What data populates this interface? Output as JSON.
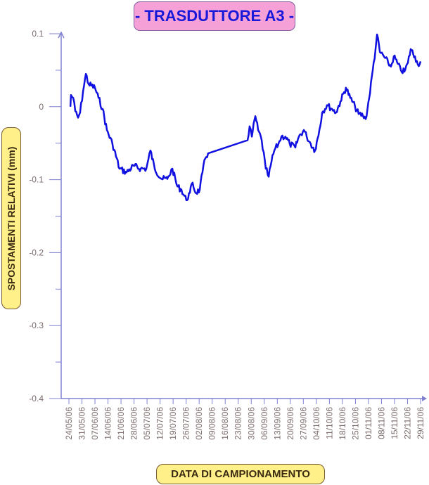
{
  "chart_data": {
    "type": "line",
    "title": "- TRASDUTTORE A3 -",
    "xlabel": "DATA DI CAMPIONAMENTO",
    "ylabel": "SPOSTAMENTI RELATIVI (mm)",
    "ylim": [
      -0.4,
      0.1
    ],
    "yticks": [
      0.1,
      0,
      -0.1,
      -0.2,
      -0.3,
      -0.4
    ],
    "ytick_labels": [
      "0.1",
      "0",
      "-0.1",
      "-0.2",
      "-0.3",
      "-0.4"
    ],
    "x_unit": "days since 24/05/06",
    "xlim": [
      0,
      189
    ],
    "xtick_labels": [
      "24/05/06",
      "31/05/06",
      "07/06/06",
      "14/06/06",
      "21/06/06",
      "28/06/06",
      "05/07/06",
      "12/07/06",
      "19/07/06",
      "26/07/06",
      "02/08/06",
      "09/08/06",
      "16/08/06",
      "23/08/06",
      "30/08/06",
      "06/09/06",
      "13/09/06",
      "20/09/06",
      "27/09/06",
      "04/10/06",
      "11/10/06",
      "18/10/06",
      "25/10/06",
      "01/11/06",
      "08/11/06",
      "15/11/06",
      "22/11/06",
      "29/11/06"
    ],
    "grid": false,
    "series": [
      {
        "name": "A3",
        "color": "#1010e0",
        "points": [
          [
            0.8,
            0.0
          ],
          [
            1.1,
            0.016
          ],
          [
            2.3,
            0.012
          ],
          [
            3.4,
            -0.006
          ],
          [
            4.9,
            -0.015
          ],
          [
            6.0,
            -0.008
          ],
          [
            7.6,
            0.021
          ],
          [
            9.1,
            0.045
          ],
          [
            10.6,
            0.031
          ],
          [
            14.0,
            0.026
          ],
          [
            15.9,
            0.012
          ],
          [
            18.1,
            -0.003
          ],
          [
            20.4,
            -0.032
          ],
          [
            23.4,
            -0.051
          ],
          [
            27.2,
            -0.085
          ],
          [
            31.0,
            -0.09
          ],
          [
            34.8,
            -0.081
          ],
          [
            38.6,
            -0.085
          ],
          [
            41.6,
            -0.085
          ],
          [
            43.8,
            -0.06
          ],
          [
            46.1,
            -0.085
          ],
          [
            49.9,
            -0.099
          ],
          [
            52.9,
            -0.099
          ],
          [
            55.6,
            -0.085
          ],
          [
            58.2,
            -0.109
          ],
          [
            60.5,
            -0.114
          ],
          [
            63.1,
            -0.128
          ],
          [
            65.0,
            -0.118
          ],
          [
            66.5,
            -0.104
          ],
          [
            68.0,
            -0.118
          ],
          [
            70.3,
            -0.114
          ],
          [
            71.8,
            -0.09
          ],
          [
            73.3,
            -0.071
          ],
          [
            74.8,
            -0.064
          ],
          [
            96.0,
            -0.046
          ],
          [
            97.1,
            -0.027
          ],
          [
            98.3,
            -0.041
          ],
          [
            100.2,
            -0.013
          ],
          [
            101.7,
            -0.032
          ],
          [
            103.6,
            -0.046
          ],
          [
            105.8,
            -0.085
          ],
          [
            107.4,
            -0.096
          ],
          [
            108.9,
            -0.075
          ],
          [
            110.4,
            -0.06
          ],
          [
            112.6,
            -0.051
          ],
          [
            114.2,
            -0.041
          ],
          [
            116.4,
            -0.041
          ],
          [
            118.7,
            -0.051
          ],
          [
            121.7,
            -0.056
          ],
          [
            123.6,
            -0.041
          ],
          [
            126.3,
            -0.032
          ],
          [
            127.8,
            -0.041
          ],
          [
            130.0,
            -0.051
          ],
          [
            132.3,
            -0.06
          ],
          [
            134.6,
            -0.032
          ],
          [
            136.1,
            -0.008
          ],
          [
            138.7,
            0.002
          ],
          [
            141.4,
            -0.003
          ],
          [
            143.6,
            -0.008
          ],
          [
            145.9,
            0.007
          ],
          [
            148.9,
            0.026
          ],
          [
            151.2,
            0.012
          ],
          [
            153.8,
            0.0
          ],
          [
            155.7,
            -0.01
          ],
          [
            158.0,
            -0.012
          ],
          [
            159.5,
            -0.017
          ],
          [
            161.4,
            0.012
          ],
          [
            163.3,
            0.05
          ],
          [
            164.8,
            0.079
          ],
          [
            165.6,
            0.099
          ],
          [
            167.1,
            0.075
          ],
          [
            169.3,
            0.069
          ],
          [
            171.6,
            0.06
          ],
          [
            173.1,
            0.055
          ],
          [
            174.6,
            0.069
          ],
          [
            176.5,
            0.06
          ],
          [
            178.4,
            0.05
          ],
          [
            180.3,
            0.048
          ],
          [
            182.2,
            0.06
          ],
          [
            183.7,
            0.079
          ],
          [
            186.0,
            0.069
          ],
          [
            187.5,
            0.058
          ],
          [
            189.0,
            0.062
          ]
        ]
      }
    ],
    "colors": {
      "axis": "#8080d0",
      "tick_text": "#7a6a6a",
      "title_bg": "#f6a0d8",
      "title_text": "#1818d8",
      "label_bg": "#fff08a"
    }
  }
}
